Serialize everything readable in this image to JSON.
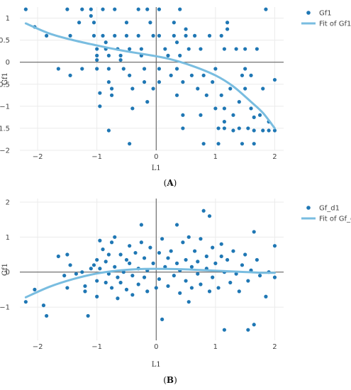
{
  "chart_data": [
    {
      "type": "scatter",
      "panel_label": "(A)",
      "xlabel": "L1",
      "ylabel": "Gf1",
      "xlim": [
        -2.3,
        2.15
      ],
      "ylim": [
        -2.0,
        1.25
      ],
      "xticks": [
        -2,
        -1,
        0,
        1,
        2
      ],
      "yticks": [
        -2,
        -1.5,
        -1,
        -0.5,
        0,
        0.5,
        1
      ],
      "grid": true,
      "legend_position": "top-right",
      "colors": {
        "points": "#1f77b4",
        "fit": "#79bde0",
        "axis": "#555555",
        "grid": "#ebebeb"
      },
      "series": [
        {
          "name": "Gf1",
          "mode": "markers",
          "points": [
            [
              -2.2,
              1.2
            ],
            [
              -2.05,
              0.8
            ],
            [
              -1.85,
              0.6
            ],
            [
              -1.65,
              -0.15
            ],
            [
              -1.5,
              1.2
            ],
            [
              -1.45,
              0.6
            ],
            [
              -1.45,
              -0.3
            ],
            [
              -1.3,
              0.9
            ],
            [
              -1.25,
              1.2
            ],
            [
              -1.25,
              -0.15
            ],
            [
              -1.1,
              1.2
            ],
            [
              -1.1,
              1.05
            ],
            [
              -1.05,
              0.9
            ],
            [
              -1.05,
              0.6
            ],
            [
              -1.0,
              0.3
            ],
            [
              -1.0,
              0.15
            ],
            [
              -1.0,
              0.05
            ],
            [
              -1.0,
              -0.15
            ],
            [
              -0.95,
              -0.7
            ],
            [
              -0.95,
              -1.0
            ],
            [
              -0.9,
              1.2
            ],
            [
              -0.9,
              0.6
            ],
            [
              -0.85,
              0.45
            ],
            [
              -0.85,
              0.3
            ],
            [
              -0.8,
              0.15
            ],
            [
              -0.8,
              -0.15
            ],
            [
              -0.8,
              -0.45
            ],
            [
              -0.75,
              -0.6
            ],
            [
              -0.75,
              -0.75
            ],
            [
              -0.8,
              -1.55
            ],
            [
              -0.7,
              1.2
            ],
            [
              -0.7,
              0.6
            ],
            [
              -0.65,
              0.3
            ],
            [
              -0.6,
              0.15
            ],
            [
              -0.6,
              0.05
            ],
            [
              -0.55,
              -0.15
            ],
            [
              -0.5,
              0.9
            ],
            [
              -0.5,
              0.6
            ],
            [
              -0.45,
              0.3
            ],
            [
              -0.45,
              -0.3
            ],
            [
              -0.4,
              -0.6
            ],
            [
              -0.4,
              -1.05
            ],
            [
              -0.45,
              -1.85
            ],
            [
              -0.3,
              1.2
            ],
            [
              -0.3,
              0.6
            ],
            [
              -0.25,
              0.3
            ],
            [
              -0.25,
              0.15
            ],
            [
              -0.2,
              -0.15
            ],
            [
              -0.2,
              -0.45
            ],
            [
              -0.15,
              1.2
            ],
            [
              -0.1,
              0.9
            ],
            [
              -0.05,
              0.6
            ],
            [
              -0.05,
              -0.6
            ],
            [
              -0.15,
              -0.9
            ],
            [
              0.05,
              1.2
            ],
            [
              0.05,
              0.6
            ],
            [
              0.05,
              -0.15
            ],
            [
              0.05,
              -0.45
            ],
            [
              0.15,
              0.3
            ],
            [
              0.2,
              0.15
            ],
            [
              0.25,
              -0.3
            ],
            [
              0.3,
              0.9
            ],
            [
              0.3,
              0.6
            ],
            [
              0.35,
              0.45
            ],
            [
              0.35,
              -0.15
            ],
            [
              0.35,
              -0.75
            ],
            [
              0.4,
              1.2
            ],
            [
              0.4,
              0.15
            ],
            [
              0.45,
              -0.45
            ],
            [
              0.45,
              -1.2
            ],
            [
              0.45,
              -1.5
            ],
            [
              0.5,
              0.75
            ],
            [
              0.5,
              0.6
            ],
            [
              0.55,
              0.3
            ],
            [
              0.6,
              -0.3
            ],
            [
              0.65,
              0.6
            ],
            [
              0.7,
              -0.6
            ],
            [
              0.75,
              0.3
            ],
            [
              0.75,
              -1.2
            ],
            [
              0.8,
              -0.3
            ],
            [
              0.85,
              -0.75
            ],
            [
              0.8,
              -1.85
            ],
            [
              0.9,
              0.6
            ],
            [
              0.95,
              -0.45
            ],
            [
              1.0,
              -0.15
            ],
            [
              1.0,
              -1.05
            ],
            [
              1.05,
              -1.5
            ],
            [
              1.05,
              -1.85
            ],
            [
              1.1,
              0.6
            ],
            [
              1.1,
              -0.75
            ],
            [
              1.15,
              0.3
            ],
            [
              1.15,
              -1.05
            ],
            [
              1.15,
              -1.35
            ],
            [
              1.15,
              -1.5
            ],
            [
              1.2,
              0.9
            ],
            [
              1.2,
              0.75
            ],
            [
              1.25,
              -0.6
            ],
            [
              1.3,
              -1.2
            ],
            [
              1.3,
              -1.55
            ],
            [
              1.35,
              0.3
            ],
            [
              1.4,
              -0.9
            ],
            [
              1.4,
              -1.5
            ],
            [
              1.45,
              -0.3
            ],
            [
              1.45,
              -1.85
            ],
            [
              1.5,
              0.3
            ],
            [
              1.5,
              -0.15
            ],
            [
              1.5,
              -0.6
            ],
            [
              1.55,
              -1.5
            ],
            [
              1.6,
              -0.3
            ],
            [
              1.6,
              -1.05
            ],
            [
              1.65,
              -1.25
            ],
            [
              1.65,
              -1.55
            ],
            [
              1.65,
              -1.85
            ],
            [
              1.7,
              0.3
            ],
            [
              1.75,
              -1.2
            ],
            [
              1.8,
              -0.6
            ],
            [
              1.8,
              -1.55
            ],
            [
              1.85,
              1.2
            ],
            [
              1.9,
              -1.35
            ],
            [
              1.9,
              -1.55
            ],
            [
              2.0,
              -0.4
            ],
            [
              2.0,
              -1.55
            ]
          ]
        },
        {
          "name": "Fit of Gf1",
          "mode": "lines",
          "points": [
            [
              -2.2,
              0.88
            ],
            [
              -1.8,
              0.65
            ],
            [
              -1.4,
              0.5
            ],
            [
              -1.0,
              0.38
            ],
            [
              -0.6,
              0.27
            ],
            [
              -0.2,
              0.18
            ],
            [
              0.2,
              0.08
            ],
            [
              0.6,
              -0.08
            ],
            [
              1.0,
              -0.3
            ],
            [
              1.3,
              -0.55
            ],
            [
              1.6,
              -0.9
            ],
            [
              1.8,
              -1.15
            ],
            [
              2.0,
              -1.5
            ]
          ]
        }
      ]
    },
    {
      "type": "scatter",
      "panel_label": "(B)",
      "xlabel": "L1",
      "ylabel": "Gf1",
      "xlim": [
        -2.3,
        2.15
      ],
      "ylim": [
        -1.95,
        2.1
      ],
      "xticks": [
        -2,
        -1,
        0,
        1,
        2
      ],
      "yticks": [
        -1,
        0,
        1,
        2
      ],
      "grid": true,
      "legend_position": "top-right",
      "colors": {
        "points": "#1f77b4",
        "fit": "#79bde0",
        "axis": "#555555",
        "grid": "#ebebeb"
      },
      "series": [
        {
          "name": "Gf_d1",
          "mode": "markers",
          "points": [
            [
              -2.2,
              -0.85
            ],
            [
              -2.05,
              -0.5
            ],
            [
              -1.9,
              -0.95
            ],
            [
              -1.85,
              -1.25
            ],
            [
              -1.65,
              0.45
            ],
            [
              -1.55,
              -0.1
            ],
            [
              -1.5,
              0.5
            ],
            [
              -1.5,
              -0.45
            ],
            [
              -1.45,
              0.2
            ],
            [
              -1.35,
              -0.05
            ],
            [
              -1.25,
              0.0
            ],
            [
              -1.2,
              -0.4
            ],
            [
              -1.2,
              -0.55
            ],
            [
              -1.15,
              -1.25
            ],
            [
              -1.1,
              0.1
            ],
            [
              -1.05,
              0.2
            ],
            [
              -1.0,
              0.35
            ],
            [
              -1.0,
              -0.25
            ],
            [
              -1.0,
              -0.7
            ],
            [
              -0.95,
              0.9
            ],
            [
              -0.95,
              0.1
            ],
            [
              -0.9,
              0.65
            ],
            [
              -0.85,
              0.3
            ],
            [
              -0.85,
              -0.3
            ],
            [
              -0.8,
              -0.05
            ],
            [
              -0.8,
              0.5
            ],
            [
              -0.75,
              0.85
            ],
            [
              -0.75,
              -0.45
            ],
            [
              -0.7,
              1.0
            ],
            [
              -0.7,
              0.15
            ],
            [
              -0.65,
              -0.15
            ],
            [
              -0.65,
              -0.75
            ],
            [
              -0.6,
              0.5
            ],
            [
              -0.6,
              -0.3
            ],
            [
              -0.55,
              0.0
            ],
            [
              -0.5,
              0.35
            ],
            [
              -0.5,
              -0.5
            ],
            [
              -0.45,
              0.75
            ],
            [
              -0.45,
              0.25
            ],
            [
              -0.4,
              -0.1
            ],
            [
              -0.4,
              -0.65
            ],
            [
              -0.35,
              0.55
            ],
            [
              -0.3,
              0.1
            ],
            [
              -0.3,
              -0.35
            ],
            [
              -0.25,
              0.85
            ],
            [
              -0.25,
              1.35
            ],
            [
              -0.2,
              0.4
            ],
            [
              -0.2,
              -0.15
            ],
            [
              -0.15,
              0.05
            ],
            [
              -0.15,
              -0.55
            ],
            [
              -0.1,
              0.7
            ],
            [
              -0.05,
              0.25
            ],
            [
              0.0,
              -0.45
            ],
            [
              0.05,
              0.55
            ],
            [
              0.05,
              -0.2
            ],
            [
              0.1,
              0.95
            ],
            [
              0.1,
              -1.35
            ],
            [
              0.15,
              0.15
            ],
            [
              0.2,
              0.4
            ],
            [
              0.2,
              -0.4
            ],
            [
              0.25,
              0.6
            ],
            [
              0.3,
              -0.1
            ],
            [
              0.35,
              1.35
            ],
            [
              0.35,
              0.25
            ],
            [
              0.4,
              -0.6
            ],
            [
              0.4,
              0.05
            ],
            [
              0.45,
              0.85
            ],
            [
              0.5,
              0.35
            ],
            [
              0.5,
              -0.25
            ],
            [
              0.55,
              1.0
            ],
            [
              0.55,
              -0.85
            ],
            [
              0.6,
              0.15
            ],
            [
              0.6,
              -0.45
            ],
            [
              0.65,
              0.6
            ],
            [
              0.7,
              -0.05
            ],
            [
              0.7,
              0.3
            ],
            [
              0.75,
              0.95
            ],
            [
              0.75,
              -0.35
            ],
            [
              0.8,
              1.75
            ],
            [
              0.85,
              0.45
            ],
            [
              0.85,
              0.1
            ],
            [
              0.9,
              1.6
            ],
            [
              0.9,
              -0.55
            ],
            [
              0.95,
              0.7
            ],
            [
              0.95,
              -0.15
            ],
            [
              1.0,
              0.25
            ],
            [
              1.05,
              -0.45
            ],
            [
              1.1,
              0.8
            ],
            [
              1.1,
              0.45
            ],
            [
              1.15,
              0.0
            ],
            [
              1.15,
              -1.65
            ],
            [
              1.2,
              0.35
            ],
            [
              1.25,
              -0.3
            ],
            [
              1.3,
              0.6
            ],
            [
              1.35,
              -0.05
            ],
            [
              1.4,
              -0.55
            ],
            [
              1.45,
              0.2
            ],
            [
              1.5,
              0.5
            ],
            [
              1.55,
              -0.25
            ],
            [
              1.55,
              -1.65
            ],
            [
              1.6,
              0.05
            ],
            [
              1.65,
              1.15
            ],
            [
              1.65,
              -1.5
            ],
            [
              1.7,
              0.35
            ],
            [
              1.75,
              -0.1
            ],
            [
              1.85,
              -0.7
            ],
            [
              1.9,
              0.0
            ],
            [
              2.0,
              0.75
            ],
            [
              2.0,
              -0.15
            ]
          ]
        },
        {
          "name": "Fit of Gf_d1",
          "mode": "lines",
          "points": [
            [
              -2.2,
              -0.72
            ],
            [
              -1.8,
              -0.42
            ],
            [
              -1.4,
              -0.2
            ],
            [
              -1.0,
              -0.04
            ],
            [
              -0.6,
              0.05
            ],
            [
              -0.2,
              0.09
            ],
            [
              0.2,
              0.09
            ],
            [
              0.6,
              0.07
            ],
            [
              1.0,
              0.04
            ],
            [
              1.4,
              0.01
            ],
            [
              1.8,
              -0.02
            ],
            [
              2.0,
              -0.02
            ]
          ]
        }
      ]
    }
  ]
}
